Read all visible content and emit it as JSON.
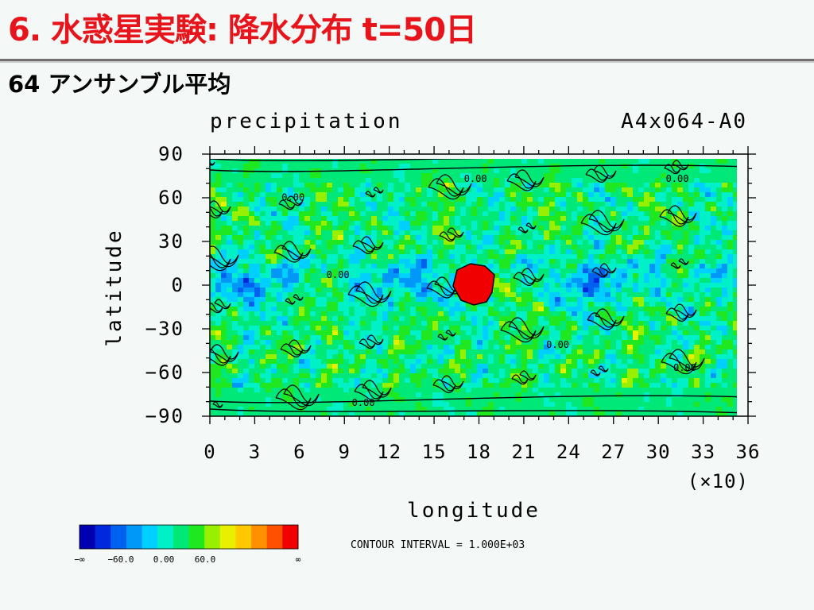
{
  "slide": {
    "title": "6. 水惑星実験: 降水分布 t=50日",
    "subtitle": "64 アンサンブル平均"
  },
  "chart_data": {
    "type": "heatmap",
    "title": "precipitation",
    "run_label": "A4x064-A0",
    "xlabel": "longitude",
    "ylabel": "latitude",
    "x_ticks": [
      "0",
      "3",
      "6",
      "9",
      "12",
      "15",
      "18",
      "21",
      "24",
      "27",
      "30",
      "33",
      "36"
    ],
    "x_scale_label": "(×10)",
    "y_ticks": [
      "90",
      "60",
      "30",
      "0",
      "−30",
      "−60",
      "−90"
    ],
    "xlim": [
      0,
      360
    ],
    "ylim": [
      -90,
      90
    ],
    "contour_labels": [
      {
        "text": "0.00",
        "lon": 170,
        "lat": 71
      },
      {
        "text": "0.00",
        "lon": 305,
        "lat": 71
      },
      {
        "text": "0.00",
        "lon": 48,
        "lat": 58
      },
      {
        "text": "0.00",
        "lon": 78,
        "lat": 5
      },
      {
        "text": "0.00",
        "lon": 225,
        "lat": -43
      },
      {
        "text": "0.00",
        "lon": 310,
        "lat": -59
      },
      {
        "text": "0.00",
        "lon": 95,
        "lat": -83
      }
    ],
    "colorbar": {
      "colors": [
        "#0000b0",
        "#0028dc",
        "#0060f0",
        "#0098f8",
        "#00d0ff",
        "#00f0c8",
        "#00e878",
        "#20e820",
        "#98f000",
        "#e8f000",
        "#ffc800",
        "#ff9000",
        "#ff5000",
        "#f00000"
      ],
      "tick_labels": [
        "−∞",
        "−60.0",
        "0.00",
        "60.0",
        "∞"
      ]
    },
    "contour_interval_text": "CONTOUR INTERVAL = 1.000E+03",
    "grid": false,
    "legend": "bottom-left"
  }
}
